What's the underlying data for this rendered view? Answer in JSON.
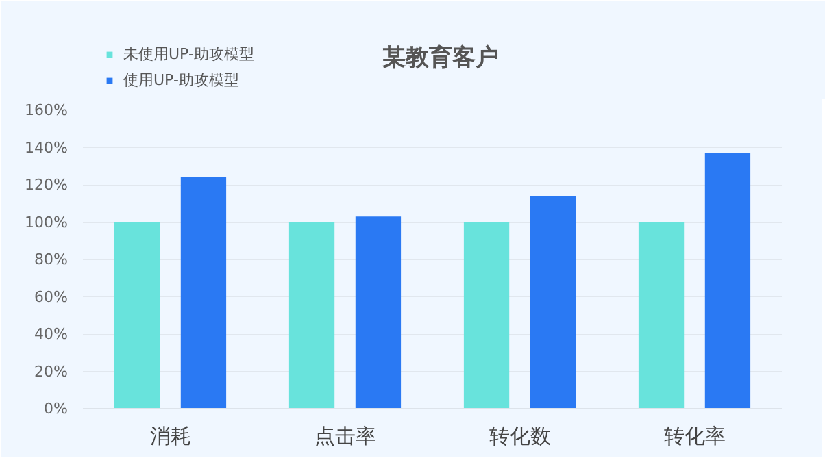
{
  "chart_data": {
    "type": "bar",
    "title": "某教育客户",
    "categories": [
      "消耗",
      "点击率",
      "转化数",
      "转化率"
    ],
    "series": [
      {
        "name": "未使用UP-助攻模型",
        "color": "#68e3dc",
        "values": [
          100,
          100,
          100,
          100
        ]
      },
      {
        "name": "使用UP-助攻模型",
        "color": "#2a79f3",
        "values": [
          124,
          103,
          114,
          137
        ]
      }
    ],
    "ylim": [
      0,
      160
    ],
    "yticks": [
      {
        "value": 0,
        "label": "0%"
      },
      {
        "value": 20,
        "label": "20%"
      },
      {
        "value": 40,
        "label": "40%"
      },
      {
        "value": 60,
        "label": "60%"
      },
      {
        "value": 80,
        "label": "80%"
      },
      {
        "value": 100,
        "label": "100%"
      },
      {
        "value": 120,
        "label": "120%"
      },
      {
        "value": 140,
        "label": "140%"
      },
      {
        "value": 160,
        "label": "160%"
      }
    ],
    "grid": "y",
    "legend": "top left"
  }
}
